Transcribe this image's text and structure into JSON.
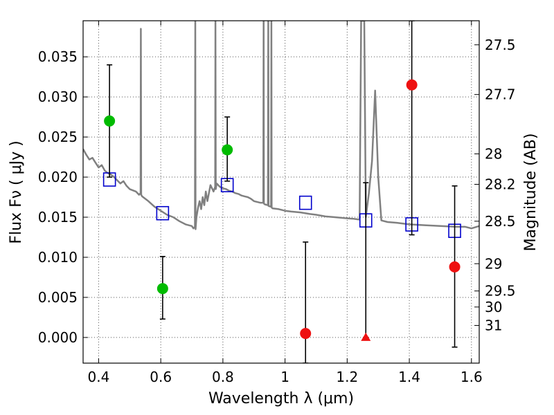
{
  "chart_data": {
    "type": "scatter",
    "xlabel": "Wavelength  λ (μm)",
    "ylabel": "Flux  Fν  ( μJy )",
    "ylabel_right": "Magnitude (AB)",
    "xlim": [
      0.35,
      1.625
    ],
    "ylim": [
      -0.0032,
      0.0395
    ],
    "grid": true,
    "x_ticks": [
      0.4,
      0.6,
      0.8,
      1.0,
      1.2,
      1.4,
      1.6
    ],
    "x_tick_labels": [
      "0.4",
      "0.6",
      "0.8",
      "1",
      "1.2",
      "1.4",
      "1.6"
    ],
    "y_ticks": [
      0.0,
      0.005,
      0.01,
      0.015,
      0.02,
      0.025,
      0.03,
      0.035
    ],
    "y_tick_labels": [
      "0.000",
      "0.005",
      "0.010",
      "0.015",
      "0.020",
      "0.025",
      "0.030",
      "0.035"
    ],
    "right_ticks": [
      {
        "label": "27.5",
        "flux": 0.0365
      },
      {
        "label": "27.7",
        "flux": 0.0303
      },
      {
        "label": "28",
        "flux": 0.0229
      },
      {
        "label": "28.2",
        "flux": 0.0191
      },
      {
        "label": "28.5",
        "flux": 0.0145
      },
      {
        "label": "29",
        "flux": 0.0092
      },
      {
        "label": "29.5",
        "flux": 0.0058
      },
      {
        "label": "30",
        "flux": 0.0038
      },
      {
        "label": "31",
        "flux": 0.0015
      }
    ],
    "colors": {
      "model": "#808080",
      "detected": "#00bb00",
      "nondetected": "#ee1111",
      "model_photometry": "#0000cc",
      "errorbar": "#000000",
      "grid": "#555555"
    },
    "model_spectrum": {
      "x": [
        0.35,
        0.36,
        0.37,
        0.38,
        0.39,
        0.4,
        0.41,
        0.42,
        0.43,
        0.44,
        0.45,
        0.46,
        0.47,
        0.48,
        0.49,
        0.5,
        0.52,
        0.53,
        0.535,
        0.536,
        0.537,
        0.54,
        0.56,
        0.58,
        0.6,
        0.62,
        0.64,
        0.66,
        0.68,
        0.7,
        0.705,
        0.71,
        0.711,
        0.712,
        0.715,
        0.72,
        0.725,
        0.73,
        0.735,
        0.74,
        0.745,
        0.75,
        0.76,
        0.77,
        0.775,
        0.776,
        0.777,
        0.78,
        0.79,
        0.8,
        0.81,
        0.82,
        0.83,
        0.84,
        0.85,
        0.86,
        0.87,
        0.88,
        0.89,
        0.9,
        0.92,
        0.93,
        0.931,
        0.932,
        0.935,
        0.945,
        0.946,
        0.947,
        0.955,
        0.956,
        0.957,
        0.96,
        0.98,
        1.0,
        1.02,
        1.05,
        1.08,
        1.1,
        1.13,
        1.16,
        1.19,
        1.22,
        1.24,
        1.245,
        1.25,
        1.255,
        1.26,
        1.27,
        1.28,
        1.29,
        1.3,
        1.31,
        1.33,
        1.36,
        1.4,
        1.45,
        1.5,
        1.55,
        1.58,
        1.6,
        1.625
      ],
      "y": [
        0.0235,
        0.0228,
        0.0222,
        0.0224,
        0.0218,
        0.0212,
        0.0215,
        0.0208,
        0.0205,
        0.0203,
        0.02,
        0.0196,
        0.0192,
        0.0195,
        0.0189,
        0.0185,
        0.0182,
        0.0178,
        0.018,
        0.0385,
        0.0178,
        0.0176,
        0.017,
        0.0163,
        0.0158,
        0.0153,
        0.015,
        0.0145,
        0.0141,
        0.0139,
        0.0136,
        0.0138,
        0.0395,
        0.0135,
        0.015,
        0.0162,
        0.017,
        0.016,
        0.0175,
        0.0165,
        0.0182,
        0.017,
        0.019,
        0.0182,
        0.0188,
        0.0395,
        0.0185,
        0.0192,
        0.0188,
        0.0186,
        0.0185,
        0.0183,
        0.0182,
        0.018,
        0.0179,
        0.0177,
        0.0176,
        0.0175,
        0.0173,
        0.017,
        0.0168,
        0.0168,
        0.0395,
        0.0167,
        0.0166,
        0.0165,
        0.0395,
        0.0164,
        0.0163,
        0.0395,
        0.0162,
        0.0161,
        0.016,
        0.0158,
        0.0157,
        0.0156,
        0.0154,
        0.0153,
        0.0151,
        0.015,
        0.0149,
        0.0148,
        0.0147,
        0.0395,
        0.0395,
        0.0395,
        0.015,
        0.018,
        0.022,
        0.0308,
        0.02,
        0.0146,
        0.0144,
        0.0143,
        0.0141,
        0.014,
        0.0139,
        0.0138,
        0.0138,
        0.0136,
        0.0139
      ]
    },
    "detected_points": [
      {
        "x": 0.435,
        "y": 0.027,
        "yerr_low": 0.02,
        "yerr_high": 0.034
      },
      {
        "x": 0.606,
        "y": 0.0061,
        "yerr_low": 0.0023,
        "yerr_high": 0.0101
      },
      {
        "x": 0.814,
        "y": 0.0234,
        "yerr_low": 0.0195,
        "yerr_high": 0.0275
      }
    ],
    "nondetected_points": [
      {
        "x": 1.066,
        "y": 0.0005,
        "yerr_low": -0.0032,
        "yerr_high": 0.0119,
        "marker": "circle"
      },
      {
        "x": 1.26,
        "y": 0.0,
        "yerr_low": 0.0,
        "yerr_high": 0.0193,
        "marker": "triangle"
      },
      {
        "x": 1.408,
        "y": 0.0315,
        "yerr_low": 0.0128,
        "yerr_high": 0.0395,
        "marker": "circle"
      },
      {
        "x": 1.546,
        "y": 0.0088,
        "yerr_low": -0.0012,
        "yerr_high": 0.0189,
        "marker": "circle"
      }
    ],
    "model_photometry": [
      {
        "x": 0.435,
        "y": 0.0197
      },
      {
        "x": 0.606,
        "y": 0.0155
      },
      {
        "x": 0.814,
        "y": 0.019
      },
      {
        "x": 1.066,
        "y": 0.0168
      },
      {
        "x": 1.26,
        "y": 0.0146
      },
      {
        "x": 1.408,
        "y": 0.0141
      },
      {
        "x": 1.546,
        "y": 0.0133
      }
    ]
  }
}
